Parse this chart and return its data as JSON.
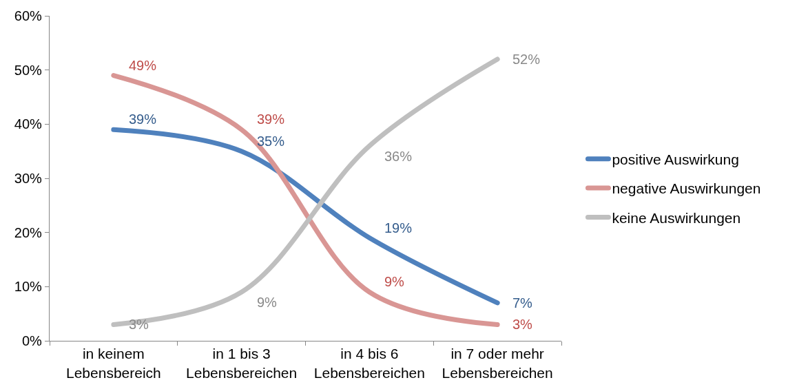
{
  "chart_data": {
    "type": "line",
    "categories": [
      "in keinem\nLebensbereich",
      "in 1 bis 3\nLebensbereichen",
      "in 4 bis 6\nLebensbereichen",
      "in 7 oder mehr\nLebensbereichen"
    ],
    "series": [
      {
        "name": "positive Auswirkung",
        "color": "#4f81bd",
        "values": [
          39,
          35,
          19,
          7
        ],
        "value_labels": [
          "39%",
          "35%",
          "19%",
          "7%"
        ]
      },
      {
        "name": "negative Auswirkungen",
        "color": "#d99694",
        "values": [
          49,
          39,
          9,
          3
        ],
        "value_labels": [
          "49%",
          "39%",
          "9%",
          "3%"
        ]
      },
      {
        "name": "keine Auswirkungen",
        "color": "#bfbfbf",
        "values": [
          3,
          9,
          36,
          52
        ],
        "value_labels": [
          "3%",
          "9%",
          "36%",
          "52%"
        ]
      }
    ],
    "ylim": [
      0,
      60
    ],
    "yticks": [
      {
        "value": 0,
        "label": "0%"
      },
      {
        "value": 10,
        "label": "10%"
      },
      {
        "value": 20,
        "label": "20%"
      },
      {
        "value": 30,
        "label": "30%"
      },
      {
        "value": 40,
        "label": "40%"
      },
      {
        "value": 50,
        "label": "50%"
      },
      {
        "value": 60,
        "label": "60%"
      }
    ],
    "grid": false,
    "legend": "right",
    "marker": "none",
    "line_style": "solid"
  }
}
